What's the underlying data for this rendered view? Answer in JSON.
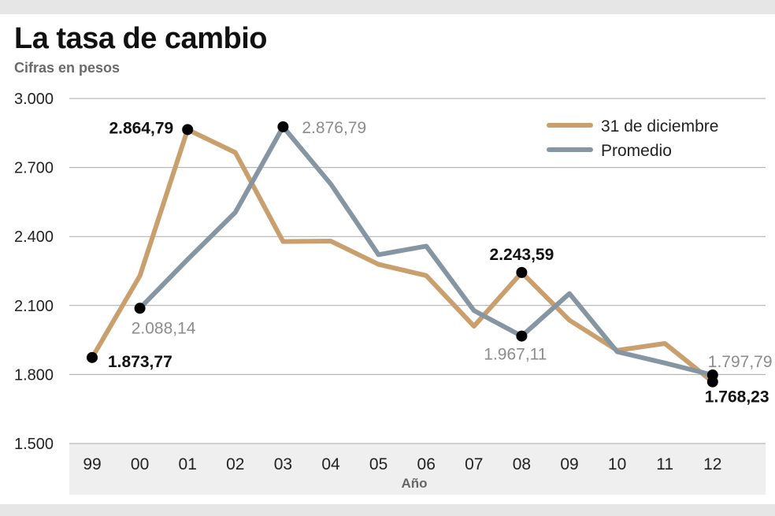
{
  "chart_data": {
    "type": "line",
    "title": "La tasa de cambio",
    "subtitle": "Cifras en pesos",
    "xlabel": "Año",
    "ylabel": "",
    "ylim": [
      1500,
      3000
    ],
    "yticks": [
      1500,
      1800,
      2100,
      2400,
      2700,
      3000
    ],
    "ytick_labels": [
      "1.500",
      "1.800",
      "2.100",
      "2.400",
      "2.700",
      "3.000"
    ],
    "categories": [
      "99",
      "00",
      "01",
      "02",
      "03",
      "04",
      "05",
      "06",
      "07",
      "08",
      "09",
      "10",
      "11",
      "12"
    ],
    "grid": true,
    "legend_position": "top-right",
    "series": [
      {
        "name": "31 de diciembre",
        "color": "#c9a06d",
        "values": [
          1873.77,
          2229,
          2864.79,
          2765,
          2378,
          2380,
          2279,
          2230,
          2010,
          2243.59,
          2036,
          1905,
          1935,
          1768.23
        ],
        "labels": [
          {
            "index": 0,
            "text": "1.873,77"
          },
          {
            "index": 2,
            "text": "2.864,79"
          },
          {
            "index": 9,
            "text": "2.243,59"
          },
          {
            "index": 13,
            "text": "1.768,23"
          }
        ]
      },
      {
        "name": "Promedio",
        "color": "#8596a2",
        "start_index": 1,
        "values": [
          null,
          2088.14,
          2300,
          2505,
          2876.79,
          2628,
          2321,
          2358,
          2078,
          1967.11,
          2152,
          1899,
          1850,
          1797.79
        ],
        "labels": [
          {
            "index": 1,
            "text": "2.088,14"
          },
          {
            "index": 4,
            "text": "2.876,79"
          },
          {
            "index": 9,
            "text": "1.967,11"
          },
          {
            "index": 13,
            "text": "1.797,79"
          }
        ]
      }
    ]
  }
}
